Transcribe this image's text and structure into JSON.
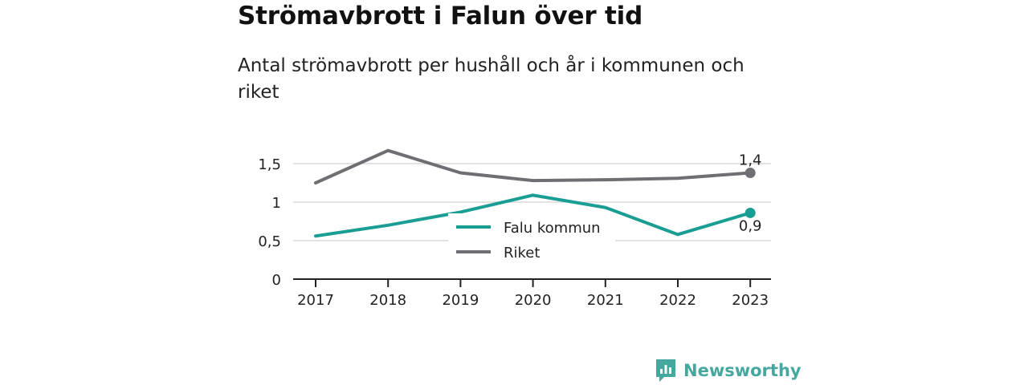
{
  "header": {
    "title": "Strömavbrott i Falun över tid",
    "subtitle": "Antal strömavbrott per hushåll och år i kommunen och riket"
  },
  "chart_data": {
    "type": "line",
    "x": [
      "2017",
      "2018",
      "2019",
      "2020",
      "2021",
      "2022",
      "2023"
    ],
    "series": [
      {
        "name": "Falu kommun",
        "color": "#1a9e94",
        "values": [
          0.56,
          0.7,
          0.87,
          1.09,
          0.93,
          0.58,
          0.86
        ],
        "end_label": "0,9"
      },
      {
        "name": "Riket",
        "color": "#6e6e73",
        "values": [
          1.25,
          1.67,
          1.38,
          1.28,
          1.29,
          1.31,
          1.38
        ],
        "end_label": "1,4"
      }
    ],
    "y_ticks": [
      {
        "value": 0,
        "label": "0"
      },
      {
        "value": 0.5,
        "label": "0,5"
      },
      {
        "value": 1,
        "label": "1"
      },
      {
        "value": 1.5,
        "label": "1,5"
      }
    ],
    "ylim": [
      0,
      1.5
    ],
    "grid": true,
    "legend_position": "center"
  },
  "brand": {
    "name": "Newsworthy",
    "color": "#45a89e"
  }
}
